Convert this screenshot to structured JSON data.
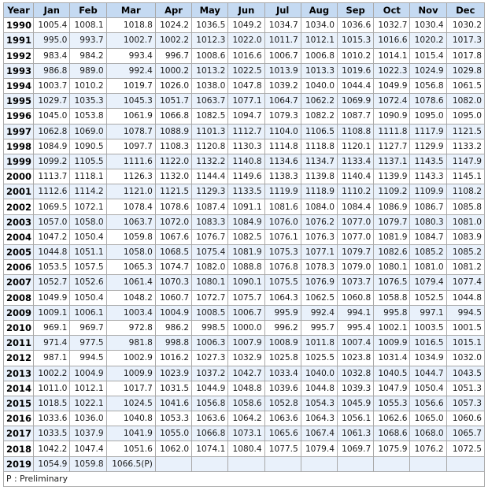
{
  "table": {
    "headers": [
      "Year",
      "Jan",
      "Feb",
      "Mar",
      "Apr",
      "May",
      "Jun",
      "Jul",
      "Aug",
      "Sep",
      "Oct",
      "Nov",
      "Dec"
    ],
    "rows": [
      [
        "1990",
        "1005.4",
        "1008.1",
        "1018.8",
        "1024.2",
        "1036.5",
        "1049.2",
        "1034.7",
        "1034.0",
        "1036.6",
        "1032.7",
        "1030.4",
        "1030.2"
      ],
      [
        "1991",
        "995.0",
        "993.7",
        "1002.7",
        "1002.2",
        "1012.3",
        "1022.0",
        "1011.7",
        "1012.1",
        "1015.3",
        "1016.6",
        "1020.2",
        "1017.3"
      ],
      [
        "1992",
        "983.4",
        "984.2",
        "993.4",
        "996.7",
        "1008.6",
        "1016.6",
        "1006.7",
        "1006.8",
        "1010.2",
        "1014.1",
        "1015.4",
        "1017.8"
      ],
      [
        "1993",
        "986.8",
        "989.0",
        "992.4",
        "1000.2",
        "1013.2",
        "1022.5",
        "1013.9",
        "1013.3",
        "1019.6",
        "1022.3",
        "1024.9",
        "1029.8"
      ],
      [
        "1994",
        "1003.7",
        "1010.2",
        "1019.7",
        "1026.0",
        "1038.0",
        "1047.8",
        "1039.2",
        "1040.0",
        "1044.4",
        "1049.9",
        "1056.8",
        "1061.5"
      ],
      [
        "1995",
        "1029.7",
        "1035.3",
        "1045.3",
        "1051.7",
        "1063.7",
        "1077.1",
        "1064.7",
        "1062.2",
        "1069.9",
        "1072.4",
        "1078.6",
        "1082.0"
      ],
      [
        "1996",
        "1045.0",
        "1053.8",
        "1061.9",
        "1066.8",
        "1082.5",
        "1094.7",
        "1079.3",
        "1082.2",
        "1087.7",
        "1090.9",
        "1095.0",
        "1095.0"
      ],
      [
        "1997",
        "1062.8",
        "1069.0",
        "1078.7",
        "1088.9",
        "1101.3",
        "1112.7",
        "1104.0",
        "1106.5",
        "1108.8",
        "1111.8",
        "1117.9",
        "1121.5"
      ],
      [
        "1998",
        "1084.9",
        "1090.5",
        "1097.7",
        "1108.3",
        "1120.8",
        "1130.3",
        "1114.8",
        "1118.8",
        "1120.1",
        "1127.7",
        "1129.9",
        "1133.2"
      ],
      [
        "1999",
        "1099.2",
        "1105.5",
        "1111.6",
        "1122.0",
        "1132.2",
        "1140.8",
        "1134.6",
        "1134.7",
        "1133.4",
        "1137.1",
        "1143.5",
        "1147.9"
      ],
      [
        "2000",
        "1113.7",
        "1118.1",
        "1126.3",
        "1132.0",
        "1144.4",
        "1149.6",
        "1138.3",
        "1139.8",
        "1140.4",
        "1139.9",
        "1143.3",
        "1145.1"
      ],
      [
        "2001",
        "1112.6",
        "1114.2",
        "1121.0",
        "1121.5",
        "1129.3",
        "1133.5",
        "1119.9",
        "1118.9",
        "1110.2",
        "1109.2",
        "1109.9",
        "1108.2"
      ],
      [
        "2002",
        "1069.5",
        "1072.1",
        "1078.4",
        "1078.6",
        "1087.4",
        "1091.1",
        "1081.6",
        "1084.0",
        "1084.4",
        "1086.9",
        "1086.7",
        "1085.8"
      ],
      [
        "2003",
        "1057.0",
        "1058.0",
        "1063.7",
        "1072.0",
        "1083.3",
        "1084.9",
        "1076.0",
        "1076.2",
        "1077.0",
        "1079.7",
        "1080.3",
        "1081.0"
      ],
      [
        "2004",
        "1047.2",
        "1050.4",
        "1059.8",
        "1067.6",
        "1076.7",
        "1082.5",
        "1076.1",
        "1076.3",
        "1077.0",
        "1081.9",
        "1084.7",
        "1083.9"
      ],
      [
        "2005",
        "1044.8",
        "1051.1",
        "1058.0",
        "1068.5",
        "1075.4",
        "1081.9",
        "1075.3",
        "1077.1",
        "1079.7",
        "1082.6",
        "1085.2",
        "1085.2"
      ],
      [
        "2006",
        "1053.5",
        "1057.5",
        "1065.3",
        "1074.7",
        "1082.0",
        "1088.8",
        "1076.8",
        "1078.3",
        "1079.0",
        "1080.1",
        "1081.0",
        "1081.2"
      ],
      [
        "2007",
        "1052.7",
        "1052.6",
        "1061.4",
        "1070.3",
        "1080.1",
        "1090.1",
        "1075.5",
        "1076.9",
        "1073.7",
        "1076.5",
        "1079.4",
        "1077.4"
      ],
      [
        "2008",
        "1049.9",
        "1050.4",
        "1048.2",
        "1060.7",
        "1072.7",
        "1075.7",
        "1064.3",
        "1062.5",
        "1060.8",
        "1058.8",
        "1052.5",
        "1044.8"
      ],
      [
        "2009",
        "1009.1",
        "1006.1",
        "1003.4",
        "1004.9",
        "1008.5",
        "1006.7",
        "995.9",
        "992.4",
        "994.1",
        "995.8",
        "997.1",
        "994.5"
      ],
      [
        "2010",
        "969.1",
        "969.7",
        "972.8",
        "986.2",
        "998.5",
        "1000.0",
        "996.2",
        "995.7",
        "995.4",
        "1002.1",
        "1003.5",
        "1001.5"
      ],
      [
        "2011",
        "971.4",
        "977.5",
        "981.8",
        "998.8",
        "1006.3",
        "1007.9",
        "1008.9",
        "1011.8",
        "1007.4",
        "1009.9",
        "1016.5",
        "1015.1"
      ],
      [
        "2012",
        "987.1",
        "994.5",
        "1002.9",
        "1016.2",
        "1027.3",
        "1032.9",
        "1025.8",
        "1025.5",
        "1023.8",
        "1031.4",
        "1034.9",
        "1032.0"
      ],
      [
        "2013",
        "1002.2",
        "1004.9",
        "1009.9",
        "1023.9",
        "1037.2",
        "1042.7",
        "1033.4",
        "1040.0",
        "1032.8",
        "1040.5",
        "1044.7",
        "1043.5"
      ],
      [
        "2014",
        "1011.0",
        "1012.1",
        "1017.7",
        "1031.5",
        "1044.9",
        "1048.8",
        "1039.6",
        "1044.8",
        "1039.3",
        "1047.9",
        "1050.4",
        "1051.3"
      ],
      [
        "2015",
        "1018.5",
        "1022.1",
        "1024.5",
        "1041.6",
        "1056.8",
        "1058.6",
        "1052.8",
        "1054.3",
        "1045.9",
        "1055.3",
        "1056.6",
        "1057.3"
      ],
      [
        "2016",
        "1033.6",
        "1036.0",
        "1040.8",
        "1053.3",
        "1063.6",
        "1064.2",
        "1063.6",
        "1064.3",
        "1056.1",
        "1062.6",
        "1065.0",
        "1060.6"
      ],
      [
        "2017",
        "1033.5",
        "1037.9",
        "1041.9",
        "1055.0",
        "1066.8",
        "1073.1",
        "1065.6",
        "1067.4",
        "1061.3",
        "1068.6",
        "1068.0",
        "1065.7"
      ],
      [
        "2018",
        "1042.2",
        "1047.4",
        "1051.6",
        "1062.0",
        "1074.1",
        "1080.4",
        "1077.5",
        "1079.4",
        "1069.7",
        "1075.9",
        "1076.2",
        "1072.5"
      ],
      [
        "2019",
        "1054.9",
        "1059.8",
        "1066.5(P)",
        "",
        "",
        "",
        "",
        "",
        "",
        "",
        "",
        ""
      ]
    ],
    "footnote": "P : Preliminary"
  }
}
